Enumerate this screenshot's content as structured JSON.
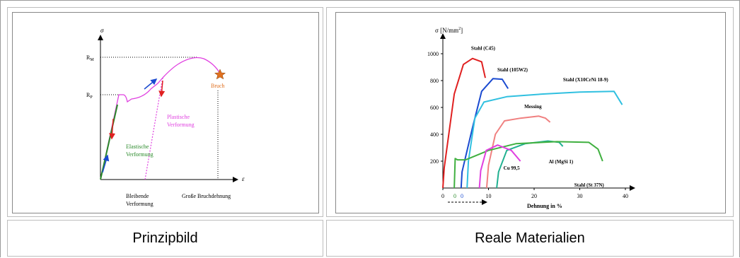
{
  "left_panel": {
    "sigma": "σ",
    "epsilon": "ε",
    "rm_label": "R",
    "rm_sub": "M",
    "rp_label": "R",
    "rp_sub": "P",
    "bruch": "Bruch",
    "plastische_line1": "Plastische",
    "plastische_line2": "Verformung",
    "elastische_line1": "Elastische",
    "elastische_line2": "Verformung",
    "bleibende_line1": "Bleibende",
    "bleibende_line2": "Verformung",
    "grosse_bruchdehnung": "Große Bruchdehnung",
    "caption": "Prinzipbild"
  },
  "right_panel": {
    "ylabel": "σ [N/mm",
    "ylabel_sup": "2",
    "ylabel_end": "]",
    "xlabel": "Dehnung in %",
    "zero_green": "0",
    "zero_blue": "0",
    "caption": "Reale Materialien"
  },
  "colors": {
    "magenta": "#e040e0",
    "green": "#2a8a2a",
    "red": "#e02020",
    "blue": "#1a4ad0",
    "orange": "#e07020",
    "cyan": "#30c0e0",
    "pink": "#f08080",
    "teal": "#20b090",
    "green_curve": "#40b040",
    "dark_green": "#3a9a3a"
  },
  "chart_data": {
    "type": "line",
    "title": "",
    "xlabel": "Dehnung in %",
    "ylabel": "σ [N/mm²]",
    "xlim": [
      0,
      42
    ],
    "ylim": [
      0,
      1100
    ],
    "xticks": [
      0,
      10,
      20,
      30,
      40
    ],
    "yticks": [
      200,
      400,
      600,
      800,
      1000
    ],
    "series": [
      {
        "name": "Stahl (C45)",
        "color": "#e02020",
        "points": [
          [
            0,
            0
          ],
          [
            0.3,
            150
          ],
          [
            2.5,
            700
          ],
          [
            4.5,
            920
          ],
          [
            6.5,
            965
          ],
          [
            8.5,
            940
          ],
          [
            9.3,
            820
          ]
        ]
      },
      {
        "name": "Stahl (105W2)",
        "color": "#1a4ad0",
        "points": [
          [
            4,
            0
          ],
          [
            4.2,
            120
          ],
          [
            6.5,
            450
          ],
          [
            8.5,
            720
          ],
          [
            11,
            815
          ],
          [
            13,
            810
          ],
          [
            14.3,
            740
          ]
        ]
      },
      {
        "name": "Stahl (X10CrNi 18-9)",
        "color": "#30c0e0",
        "points": [
          [
            5.3,
            0
          ],
          [
            5.6,
            200
          ],
          [
            7,
            520
          ],
          [
            9,
            640
          ],
          [
            14,
            680
          ],
          [
            22,
            700
          ],
          [
            30,
            715
          ],
          [
            37.5,
            720
          ],
          [
            39.3,
            620
          ]
        ]
      },
      {
        "name": "Messing",
        "color": "#f08080",
        "points": [
          [
            9.6,
            0
          ],
          [
            10,
            170
          ],
          [
            11.5,
            400
          ],
          [
            13.5,
            500
          ],
          [
            17,
            520
          ],
          [
            21,
            535
          ],
          [
            22.5,
            520
          ],
          [
            23.5,
            490
          ]
        ]
      },
      {
        "name": "Al (MgSi 1)",
        "color": "#20b090",
        "points": [
          [
            11.8,
            0
          ],
          [
            12.2,
            120
          ],
          [
            14,
            280
          ],
          [
            18,
            330
          ],
          [
            23,
            350
          ],
          [
            25.5,
            340
          ],
          [
            26.3,
            310
          ]
        ]
      },
      {
        "name": "Stahl (St 37N)",
        "color": "#40b040",
        "points": [
          [
            2.5,
            0
          ],
          [
            2.7,
            220
          ],
          [
            3.2,
            210
          ],
          [
            5,
            210
          ],
          [
            10,
            280
          ],
          [
            16,
            330
          ],
          [
            25,
            345
          ],
          [
            32,
            340
          ],
          [
            34,
            290
          ],
          [
            35,
            200
          ]
        ]
      },
      {
        "name": "Cu 99,5",
        "color": "#e040e0",
        "points": [
          [
            8,
            0
          ],
          [
            8.3,
            130
          ],
          [
            9.5,
            280
          ],
          [
            12,
            320
          ],
          [
            15,
            280
          ],
          [
            17,
            200
          ]
        ]
      }
    ]
  }
}
